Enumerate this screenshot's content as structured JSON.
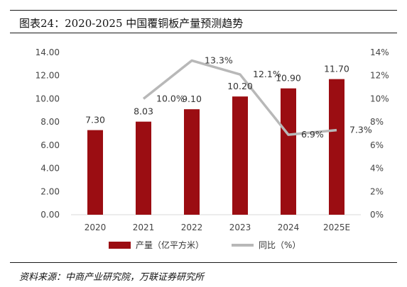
{
  "header": {
    "title": "图表24：2020-2025 中国覆铜板产量预测趋势"
  },
  "footer": {
    "source": "资料来源：中商产业研究院，万联证券研究所"
  },
  "colors": {
    "bar": "#9b0d12",
    "line": "#b8b8b8",
    "axis_text": "#444444",
    "rule": "#1a1a1a"
  },
  "chart_data": {
    "type": "bar",
    "categories": [
      "2020",
      "2021",
      "2022",
      "2023",
      "2024",
      "2025E"
    ],
    "series": [
      {
        "name": "产量（亿平方米）",
        "type": "bar",
        "axis": "left",
        "values": [
          7.3,
          8.03,
          9.1,
          10.2,
          10.9,
          11.7
        ],
        "labels": [
          "7.30",
          "8.03",
          "9.10",
          "10.20",
          "10.90",
          "11.70"
        ]
      },
      {
        "name": "同比（%）",
        "type": "line",
        "axis": "right",
        "values": [
          null,
          10.0,
          13.3,
          12.1,
          6.9,
          7.3
        ],
        "labels": [
          "",
          "10.0%",
          "13.3%",
          "12.1%",
          "6.9%",
          "7.3%"
        ]
      }
    ],
    "y_left": {
      "min": 0,
      "max": 14,
      "step": 2,
      "ticks": [
        "0.00",
        "2.00",
        "4.00",
        "6.00",
        "8.00",
        "10.00",
        "12.00",
        "14.00"
      ]
    },
    "y_right": {
      "min": 0,
      "max": 14,
      "step": 2,
      "ticks": [
        "0%",
        "2%",
        "4%",
        "6%",
        "8%",
        "10%",
        "12%",
        "14%"
      ]
    },
    "legend_position": "bottom-center",
    "grid": false
  }
}
